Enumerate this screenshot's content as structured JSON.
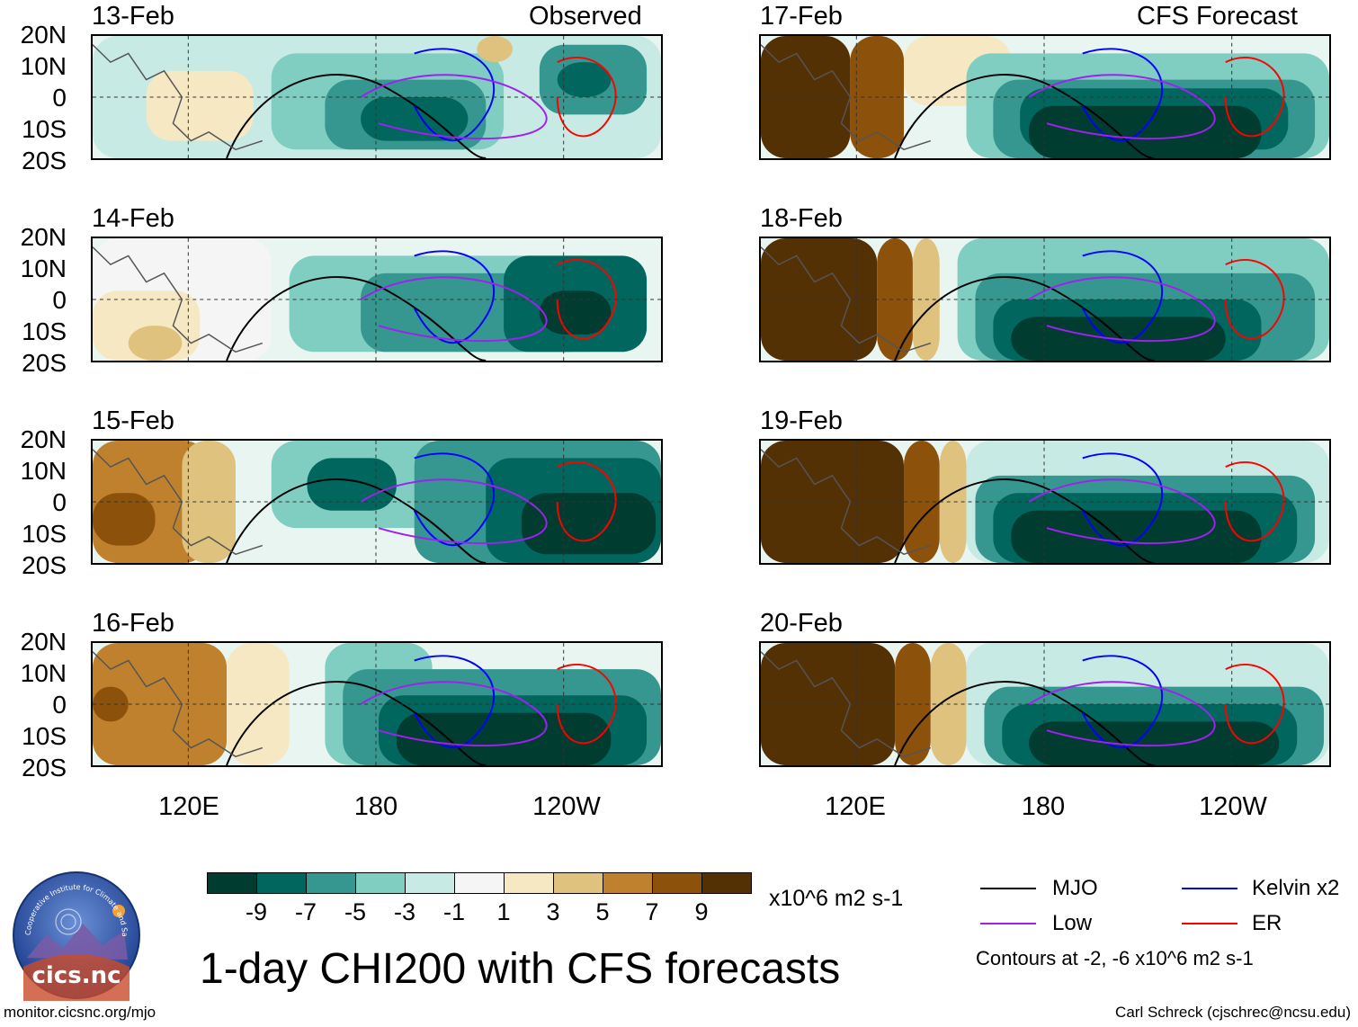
{
  "title": "1-day CHI200 with CFS forecasts",
  "left_column_label": "Observed",
  "right_column_label": "CFS Forecast",
  "panels": [
    {
      "date": "13-Feb",
      "column": "observed"
    },
    {
      "date": "14-Feb",
      "column": "observed"
    },
    {
      "date": "15-Feb",
      "column": "observed"
    },
    {
      "date": "16-Feb",
      "column": "observed"
    },
    {
      "date": "17-Feb",
      "column": "forecast"
    },
    {
      "date": "18-Feb",
      "column": "forecast"
    },
    {
      "date": "19-Feb",
      "column": "forecast"
    },
    {
      "date": "20-Feb",
      "column": "forecast"
    }
  ],
  "lat_labels": [
    "20N",
    "10N",
    "0",
    "10S",
    "20S"
  ],
  "lon_labels": [
    "120E",
    "180",
    "120W"
  ],
  "colorbar": {
    "tick_labels": [
      "-9",
      "-7",
      "-5",
      "-3",
      "-1",
      "1",
      "3",
      "5",
      "7",
      "9"
    ],
    "colors": [
      "#003c30",
      "#01665e",
      "#35978f",
      "#80cdc1",
      "#c7eae5",
      "#f5f5f5",
      "#f6e8c3",
      "#dfc27d",
      "#bf812d",
      "#8c510a",
      "#543005"
    ],
    "units": "x10^6 m2 s-1"
  },
  "legend": {
    "items": [
      {
        "label": "MJO",
        "color": "#000000"
      },
      {
        "label": "Kelvin x2",
        "color": "#0000ff"
      },
      {
        "label": "Low",
        "color": "#a020f0"
      },
      {
        "label": "ER",
        "color": "#ff0000"
      }
    ],
    "note": "Contours at -2, -6 x10^6 m2 s-1"
  },
  "logo": {
    "text": "cics.nc",
    "ring_text": "Cooperative Institute for Climate and Satellites"
  },
  "footer": {
    "left": "monitor.cicsnc.org/mjo",
    "right": "Carl Schreck (cjschrec@ncsu.edu)"
  }
}
